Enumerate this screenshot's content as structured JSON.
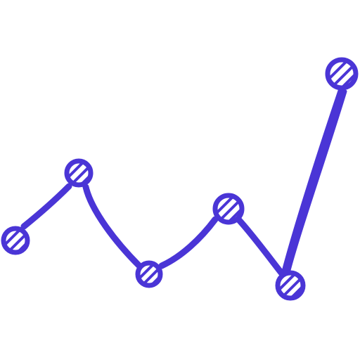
{
  "icon": {
    "name": "line-chart-icon",
    "color": "#4A35D6",
    "background": "#FFFFFF",
    "style": "hand-drawn line with hatched circular markers"
  }
}
